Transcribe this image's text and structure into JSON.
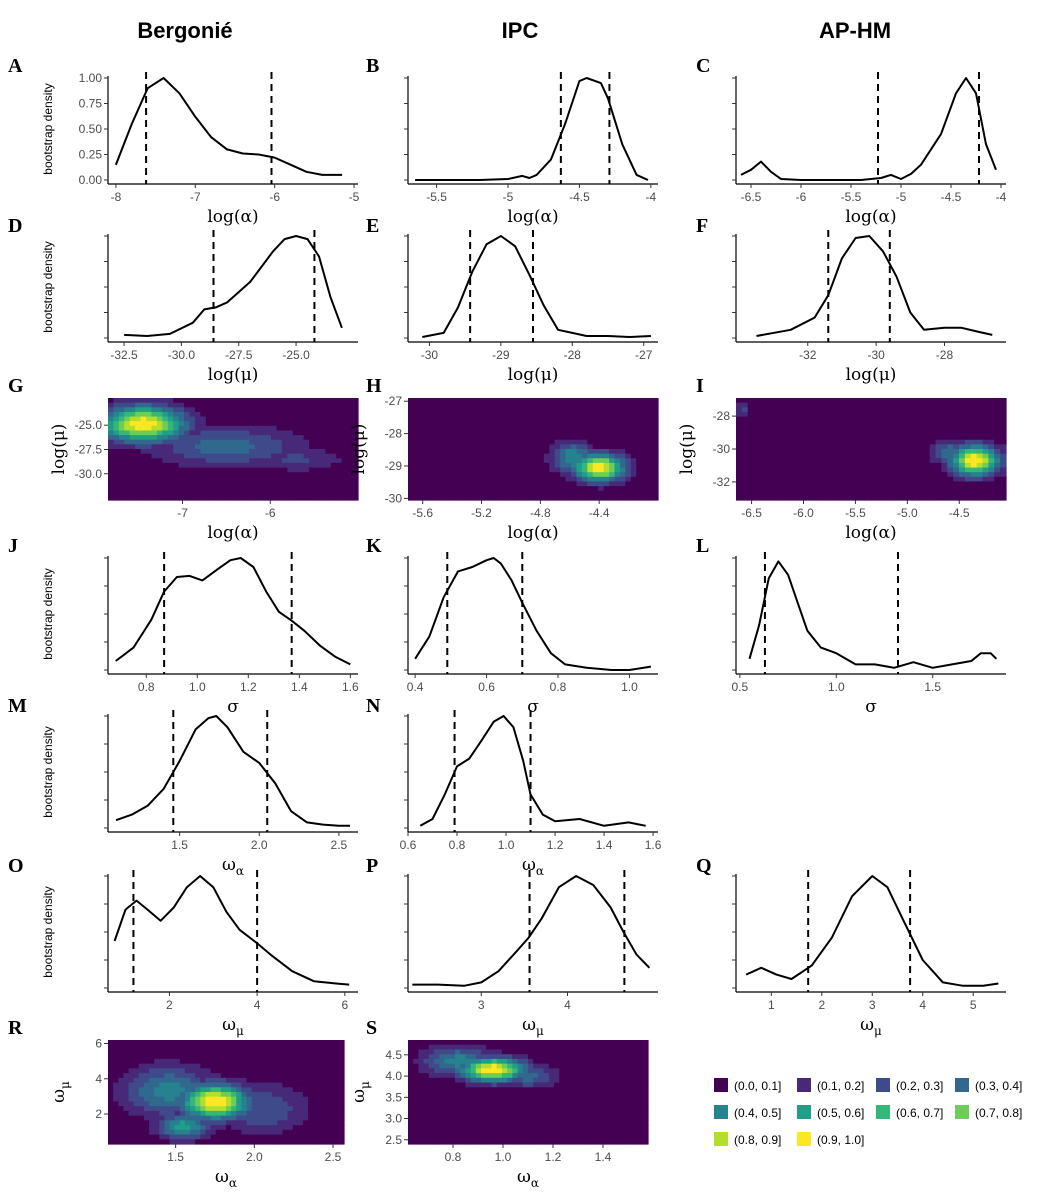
{
  "column_titles": [
    "Bergonié",
    "IPC",
    "AP-HM"
  ],
  "legend": {
    "entries": [
      "(0.0, 0.1]",
      "(0.1, 0.2]",
      "(0.2, 0.3]",
      "(0.3, 0.4]",
      "(0.4, 0.5]",
      "(0.5, 0.6]",
      "(0.6, 0.7]",
      "(0.7, 0.8]",
      "(0.8, 0.9]",
      "(0.9, 1.0]"
    ],
    "colors": [
      "#440154",
      "#482878",
      "#3E4A89",
      "#31688E",
      "#26828E",
      "#1F9E89",
      "#35B779",
      "#6DCD59",
      "#B4DE2C",
      "#FDE725"
    ]
  },
  "chart_data": [
    {
      "id": "A",
      "type": "line",
      "label": "A",
      "xlabel": "log(α)",
      "ylabel": "bootstrap density",
      "xlim": [
        -8.1,
        -4.95
      ],
      "ylim": [
        0,
        1
      ],
      "x": [
        -8.0,
        -7.8,
        -7.6,
        -7.4,
        -7.2,
        -7.0,
        -6.8,
        -6.6,
        -6.4,
        -6.2,
        -6.0,
        -5.8,
        -5.6,
        -5.4,
        -5.15
      ],
      "y": [
        0.15,
        0.55,
        0.9,
        1.0,
        0.85,
        0.62,
        0.42,
        0.3,
        0.26,
        0.25,
        0.22,
        0.15,
        0.08,
        0.05,
        0.05
      ],
      "vlines": [
        -7.62,
        -6.04
      ],
      "xticks": [
        -8,
        -7,
        -6,
        -5
      ],
      "yticks": [
        "0.00",
        "0.25",
        "0.50",
        "0.75",
        "1.00"
      ]
    },
    {
      "id": "B",
      "type": "line",
      "label": "B",
      "xlabel": "log(α)",
      "xlim": [
        -5.7,
        -3.95
      ],
      "ylim": [
        0,
        1
      ],
      "x": [
        -5.65,
        -5.4,
        -5.2,
        -5.0,
        -4.9,
        -4.85,
        -4.8,
        -4.7,
        -4.6,
        -4.5,
        -4.45,
        -4.35,
        -4.3,
        -4.2,
        -4.1,
        -4.02
      ],
      "y": [
        0.0,
        0.0,
        0.0,
        0.01,
        0.04,
        0.02,
        0.05,
        0.2,
        0.55,
        0.97,
        1.0,
        0.95,
        0.8,
        0.35,
        0.05,
        0.0
      ],
      "vlines": [
        -4.63,
        -4.29
      ],
      "xticks": [
        -5.5,
        -5.0,
        -4.5,
        -4.0
      ]
    },
    {
      "id": "C",
      "type": "line",
      "label": "C",
      "xlabel": "log(α)",
      "xlim": [
        -6.65,
        -3.95
      ],
      "ylim": [
        0,
        1
      ],
      "x": [
        -6.6,
        -6.5,
        -6.4,
        -6.3,
        -6.2,
        -6.0,
        -5.8,
        -5.6,
        -5.4,
        -5.2,
        -5.1,
        -5.0,
        -4.9,
        -4.8,
        -4.6,
        -4.45,
        -4.35,
        -4.25,
        -4.15,
        -4.05
      ],
      "y": [
        0.05,
        0.1,
        0.18,
        0.08,
        0.01,
        0.0,
        0.0,
        0.0,
        0.0,
        0.02,
        0.05,
        0.01,
        0.06,
        0.15,
        0.45,
        0.85,
        1.0,
        0.85,
        0.35,
        0.1
      ],
      "vlines": [
        -5.23,
        -4.22
      ],
      "xticks": [
        -6.5,
        -6.0,
        -5.5,
        -5.0,
        -4.5,
        -4.0
      ]
    },
    {
      "id": "D",
      "type": "line",
      "label": "D",
      "xlabel": "log(μ)",
      "ylabel": "bootstrap density",
      "xlim": [
        -33.2,
        -22.3
      ],
      "ylim": [
        0,
        1
      ],
      "x": [
        -32.5,
        -31.5,
        -30.5,
        -29.5,
        -29.0,
        -28.5,
        -28.0,
        -27.0,
        -26.0,
        -25.5,
        -25.0,
        -24.5,
        -24.0,
        -23.5,
        -23.0
      ],
      "y": [
        0.03,
        0.02,
        0.04,
        0.15,
        0.28,
        0.3,
        0.35,
        0.55,
        0.85,
        0.97,
        1.0,
        0.97,
        0.8,
        0.4,
        0.1
      ],
      "vlines": [
        -28.6,
        -24.2
      ],
      "xticks": [
        -32.5,
        -30.0,
        -27.5,
        -25.0
      ],
      "xticklabels": [
        "-32.5",
        "-30.0",
        "-27.5",
        "-25.0"
      ]
    },
    {
      "id": "E",
      "type": "line",
      "label": "E",
      "xlabel": "log(μ)",
      "xlim": [
        -30.3,
        -26.8
      ],
      "ylim": [
        0,
        1
      ],
      "x": [
        -30.1,
        -29.8,
        -29.6,
        -29.4,
        -29.2,
        -29.0,
        -28.8,
        -28.6,
        -28.4,
        -28.2,
        -28.0,
        -27.8,
        -27.5,
        -27.2,
        -26.9
      ],
      "y": [
        0.01,
        0.05,
        0.3,
        0.65,
        0.92,
        1.0,
        0.9,
        0.62,
        0.32,
        0.08,
        0.05,
        0.02,
        0.02,
        0.01,
        0.02
      ],
      "vlines": [
        -29.43,
        -28.55
      ],
      "xticks": [
        -30,
        -29,
        -28,
        -27
      ]
    },
    {
      "id": "F",
      "type": "line",
      "label": "F",
      "xlabel": "log(μ)",
      "xlim": [
        -34.1,
        -26.2
      ],
      "ylim": [
        0,
        1
      ],
      "x": [
        -33.5,
        -32.5,
        -31.8,
        -31.4,
        -31.0,
        -30.6,
        -30.2,
        -29.8,
        -29.4,
        -29.0,
        -28.6,
        -28.0,
        -27.5,
        -27.0,
        -26.6
      ],
      "y": [
        0.02,
        0.08,
        0.2,
        0.42,
        0.78,
        0.98,
        1.0,
        0.85,
        0.6,
        0.25,
        0.08,
        0.1,
        0.1,
        0.06,
        0.03
      ],
      "vlines": [
        -31.4,
        -29.6
      ],
      "xticks": [
        -32,
        -30,
        -28
      ]
    },
    {
      "id": "G",
      "type": "heatmap",
      "label": "G",
      "xlabel": "log(α)",
      "ylabel": "log(μ)",
      "xlim": [
        -7.85,
        -5.0
      ],
      "ylim": [
        -32.7,
        -22.2
      ],
      "xticks": [
        -7,
        -6
      ],
      "yticks": [
        -25.0,
        -27.5,
        -30.0
      ],
      "yticklabels": [
        "-25.0",
        "-27.5",
        "-30.0"
      ],
      "peaks": [
        {
          "x": -7.45,
          "y": -24.9,
          "sx": 0.33,
          "sy": 1.3,
          "h": 1.0
        },
        {
          "x": -6.5,
          "y": -27.2,
          "sx": 0.6,
          "sy": 1.5,
          "h": 0.35
        },
        {
          "x": -5.7,
          "y": -28.5,
          "sx": 0.4,
          "sy": 0.9,
          "h": 0.22
        }
      ]
    },
    {
      "id": "H",
      "type": "heatmap",
      "label": "H",
      "xlabel": "log(α)",
      "ylabel": "log(μ)",
      "xlim": [
        -5.7,
        -4.0
      ],
      "ylim": [
        -30.05,
        -26.9
      ],
      "xticks": [
        -5.6,
        -5.2,
        -4.8,
        -4.4
      ],
      "xticklabels": [
        "-5.6",
        "-5.2",
        "-4.8",
        "-4.4"
      ],
      "yticks": [
        -27,
        -28,
        -29,
        -30
      ],
      "peaks": [
        {
          "x": -4.4,
          "y": -29.05,
          "sx": 0.12,
          "sy": 0.3,
          "h": 1.0
        },
        {
          "x": -4.58,
          "y": -28.75,
          "sx": 0.1,
          "sy": 0.35,
          "h": 0.5
        }
      ]
    },
    {
      "id": "I",
      "type": "heatmap",
      "label": "I",
      "xlabel": "log(α)",
      "ylabel": "log(μ)",
      "xlim": [
        -6.65,
        -4.05
      ],
      "ylim": [
        -33.1,
        -26.9
      ],
      "xticks": [
        -6.5,
        -6.0,
        -5.5,
        -5.0,
        -4.5
      ],
      "xticklabels": [
        "-6.5",
        "-6.0",
        "-5.5",
        "-5.0",
        "-4.5"
      ],
      "yticks": [
        -28,
        -30,
        -32
      ],
      "peaks": [
        {
          "x": -4.35,
          "y": -30.7,
          "sx": 0.16,
          "sy": 0.65,
          "h": 1.0
        },
        {
          "x": -4.6,
          "y": -30.2,
          "sx": 0.12,
          "sy": 0.5,
          "h": 0.4
        },
        {
          "x": -6.58,
          "y": -27.6,
          "sx": 0.05,
          "sy": 0.35,
          "h": 0.25
        }
      ]
    },
    {
      "id": "J",
      "type": "line",
      "label": "J",
      "xlabel": "σ",
      "ylabel": "bootstrap density",
      "xlim": [
        0.65,
        1.63
      ],
      "ylim": [
        0,
        1
      ],
      "x": [
        0.68,
        0.75,
        0.82,
        0.87,
        0.92,
        0.97,
        1.02,
        1.08,
        1.13,
        1.17,
        1.22,
        1.27,
        1.32,
        1.37,
        1.42,
        1.48,
        1.54,
        1.6
      ],
      "y": [
        0.08,
        0.2,
        0.45,
        0.7,
        0.83,
        0.84,
        0.8,
        0.9,
        0.98,
        1.0,
        0.92,
        0.7,
        0.52,
        0.44,
        0.35,
        0.22,
        0.12,
        0.05
      ],
      "vlines": [
        0.87,
        1.37
      ],
      "xticks": [
        0.8,
        1.0,
        1.2,
        1.4,
        1.6
      ],
      "xticklabels": [
        "0.8",
        "1.0",
        "1.2",
        "1.4",
        "1.6"
      ]
    },
    {
      "id": "K",
      "type": "line",
      "label": "K",
      "xlabel": "σ",
      "xlim": [
        0.38,
        1.08
      ],
      "ylim": [
        0,
        1
      ],
      "x": [
        0.4,
        0.44,
        0.48,
        0.52,
        0.56,
        0.6,
        0.62,
        0.64,
        0.67,
        0.7,
        0.74,
        0.78,
        0.82,
        0.88,
        0.95,
        1.0,
        1.06
      ],
      "y": [
        0.1,
        0.3,
        0.65,
        0.88,
        0.92,
        0.98,
        1.0,
        0.95,
        0.8,
        0.6,
        0.35,
        0.15,
        0.05,
        0.02,
        0.0,
        0.0,
        0.03
      ],
      "vlines": [
        0.49,
        0.7
      ],
      "xticks": [
        0.4,
        0.6,
        0.8,
        1.0
      ],
      "xticklabels": [
        "0.4",
        "0.6",
        "0.8",
        "1.0"
      ]
    },
    {
      "id": "L",
      "type": "line",
      "label": "L",
      "xlabel": "σ",
      "xlim": [
        0.48,
        1.88
      ],
      "ylim": [
        0,
        1
      ],
      "x": [
        0.55,
        0.6,
        0.65,
        0.7,
        0.75,
        0.8,
        0.85,
        0.92,
        1.0,
        1.1,
        1.2,
        1.3,
        1.4,
        1.5,
        1.6,
        1.7,
        1.75,
        1.8,
        1.83
      ],
      "y": [
        0.1,
        0.4,
        0.82,
        0.97,
        0.85,
        0.6,
        0.35,
        0.2,
        0.15,
        0.05,
        0.05,
        0.02,
        0.07,
        0.02,
        0.05,
        0.08,
        0.15,
        0.15,
        0.1
      ],
      "vlines": [
        0.63,
        1.32
      ],
      "xticks": [
        0.5,
        1.0,
        1.5
      ],
      "xticklabels": [
        "0.5",
        "1.0",
        "1.5"
      ]
    },
    {
      "id": "M",
      "type": "line",
      "label": "M",
      "xlabel": "ωα",
      "ylabel": "bootstrap density",
      "xlim": [
        1.05,
        2.62
      ],
      "ylim": [
        0,
        1
      ],
      "x": [
        1.1,
        1.2,
        1.3,
        1.4,
        1.5,
        1.6,
        1.68,
        1.73,
        1.8,
        1.9,
        2.0,
        2.1,
        2.2,
        2.3,
        2.4,
        2.5,
        2.57
      ],
      "y": [
        0.07,
        0.12,
        0.2,
        0.35,
        0.6,
        0.88,
        0.98,
        1.0,
        0.9,
        0.68,
        0.58,
        0.4,
        0.15,
        0.05,
        0.03,
        0.02,
        0.02
      ],
      "vlines": [
        1.46,
        2.05
      ],
      "xticks": [
        1.5,
        2.0,
        2.5
      ],
      "xticklabels": [
        "1.5",
        "2.0",
        "2.5"
      ]
    },
    {
      "id": "N",
      "type": "line",
      "label": "N",
      "xlabel": "ωα",
      "xlim": [
        0.6,
        1.62
      ],
      "ylim": [
        0,
        1
      ],
      "x": [
        0.65,
        0.7,
        0.75,
        0.8,
        0.85,
        0.9,
        0.95,
        0.99,
        1.03,
        1.07,
        1.1,
        1.15,
        1.2,
        1.3,
        1.4,
        1.5,
        1.57
      ],
      "y": [
        0.02,
        0.08,
        0.3,
        0.55,
        0.62,
        0.78,
        0.95,
        1.0,
        0.9,
        0.6,
        0.3,
        0.12,
        0.06,
        0.08,
        0.02,
        0.05,
        0.02
      ],
      "vlines": [
        0.79,
        1.1
      ],
      "xticks": [
        0.6,
        0.8,
        1.0,
        1.2,
        1.4,
        1.6
      ],
      "xticklabels": [
        "0.6",
        "0.8",
        "1.0",
        "1.2",
        "1.4",
        "1.6"
      ]
    },
    {
      "id": "O",
      "type": "line",
      "label": "O",
      "xlabel": "ωμ",
      "ylabel": "bootstrap density",
      "xlim": [
        0.6,
        6.3
      ],
      "ylim": [
        0,
        1
      ],
      "x": [
        0.75,
        1.0,
        1.25,
        1.5,
        1.8,
        2.1,
        2.4,
        2.7,
        3.0,
        3.3,
        3.6,
        4.0,
        4.3,
        4.8,
        5.3,
        5.8,
        6.1
      ],
      "y": [
        0.42,
        0.7,
        0.78,
        0.7,
        0.6,
        0.72,
        0.9,
        1.0,
        0.9,
        0.68,
        0.52,
        0.4,
        0.3,
        0.15,
        0.06,
        0.04,
        0.03
      ],
      "vlines": [
        1.18,
        4.0
      ],
      "xticks": [
        2,
        4,
        6
      ]
    },
    {
      "id": "P",
      "type": "line",
      "label": "P",
      "xlabel": "ωμ",
      "xlim": [
        2.15,
        5.05
      ],
      "ylim": [
        0,
        1
      ],
      "x": [
        2.2,
        2.5,
        2.8,
        3.0,
        3.2,
        3.4,
        3.55,
        3.7,
        3.9,
        4.1,
        4.3,
        4.5,
        4.65,
        4.8,
        4.95
      ],
      "y": [
        0.03,
        0.03,
        0.02,
        0.05,
        0.15,
        0.32,
        0.45,
        0.62,
        0.9,
        1.0,
        0.92,
        0.72,
        0.5,
        0.3,
        0.18
      ],
      "vlines": [
        3.56,
        4.66
      ],
      "xticks": [
        3,
        4
      ]
    },
    {
      "id": "Q",
      "type": "line",
      "label": "Q",
      "xlabel": "ωμ",
      "xlim": [
        0.3,
        5.65
      ],
      "ylim": [
        0,
        1
      ],
      "x": [
        0.5,
        0.8,
        1.1,
        1.4,
        1.8,
        2.2,
        2.6,
        3.0,
        3.3,
        3.6,
        4.0,
        4.4,
        4.8,
        5.2,
        5.5
      ],
      "y": [
        0.12,
        0.18,
        0.12,
        0.08,
        0.2,
        0.45,
        0.82,
        1.0,
        0.9,
        0.62,
        0.25,
        0.05,
        0.02,
        0.02,
        0.04
      ],
      "vlines": [
        1.73,
        3.75
      ],
      "xticks": [
        1,
        2,
        3,
        4,
        5
      ]
    },
    {
      "id": "R",
      "type": "heatmap",
      "label": "R",
      "xlabel": "ωα",
      "ylabel": "ωμ",
      "xlim": [
        1.07,
        2.57
      ],
      "ylim": [
        0.3,
        6.2
      ],
      "xticks": [
        1.5,
        2.0,
        2.5
      ],
      "xticklabels": [
        "1.5",
        "2.0",
        "2.5"
      ],
      "yticks": [
        2,
        4,
        6
      ],
      "peaks": [
        {
          "x": 1.75,
          "y": 2.7,
          "sx": 0.15,
          "sy": 0.7,
          "h": 1.0
        },
        {
          "x": 1.55,
          "y": 1.3,
          "sx": 0.12,
          "sy": 0.5,
          "h": 0.55
        },
        {
          "x": 1.45,
          "y": 3.3,
          "sx": 0.2,
          "sy": 1.0,
          "h": 0.45
        },
        {
          "x": 2.05,
          "y": 2.3,
          "sx": 0.2,
          "sy": 1.0,
          "h": 0.3
        }
      ]
    },
    {
      "id": "S",
      "type": "heatmap",
      "label": "S",
      "xlabel": "ωα",
      "ylabel": "ωμ",
      "xlim": [
        0.62,
        1.58
      ],
      "ylim": [
        2.4,
        4.85
      ],
      "xticks": [
        0.8,
        1.0,
        1.2,
        1.4
      ],
      "xticklabels": [
        "0.8",
        "1.0",
        "1.2",
        "1.4"
      ],
      "yticks": [
        2.5,
        3.0,
        3.5,
        4.0,
        4.5
      ],
      "yticklabels": [
        "2.5",
        "3.0",
        "3.5",
        "4.0",
        "4.5"
      ],
      "peaks": [
        {
          "x": 0.96,
          "y": 4.15,
          "sx": 0.09,
          "sy": 0.2,
          "h": 1.0
        },
        {
          "x": 0.82,
          "y": 4.35,
          "sx": 0.1,
          "sy": 0.25,
          "h": 0.45
        },
        {
          "x": 1.1,
          "y": 4.0,
          "sx": 0.08,
          "sy": 0.2,
          "h": 0.35
        }
      ]
    }
  ]
}
